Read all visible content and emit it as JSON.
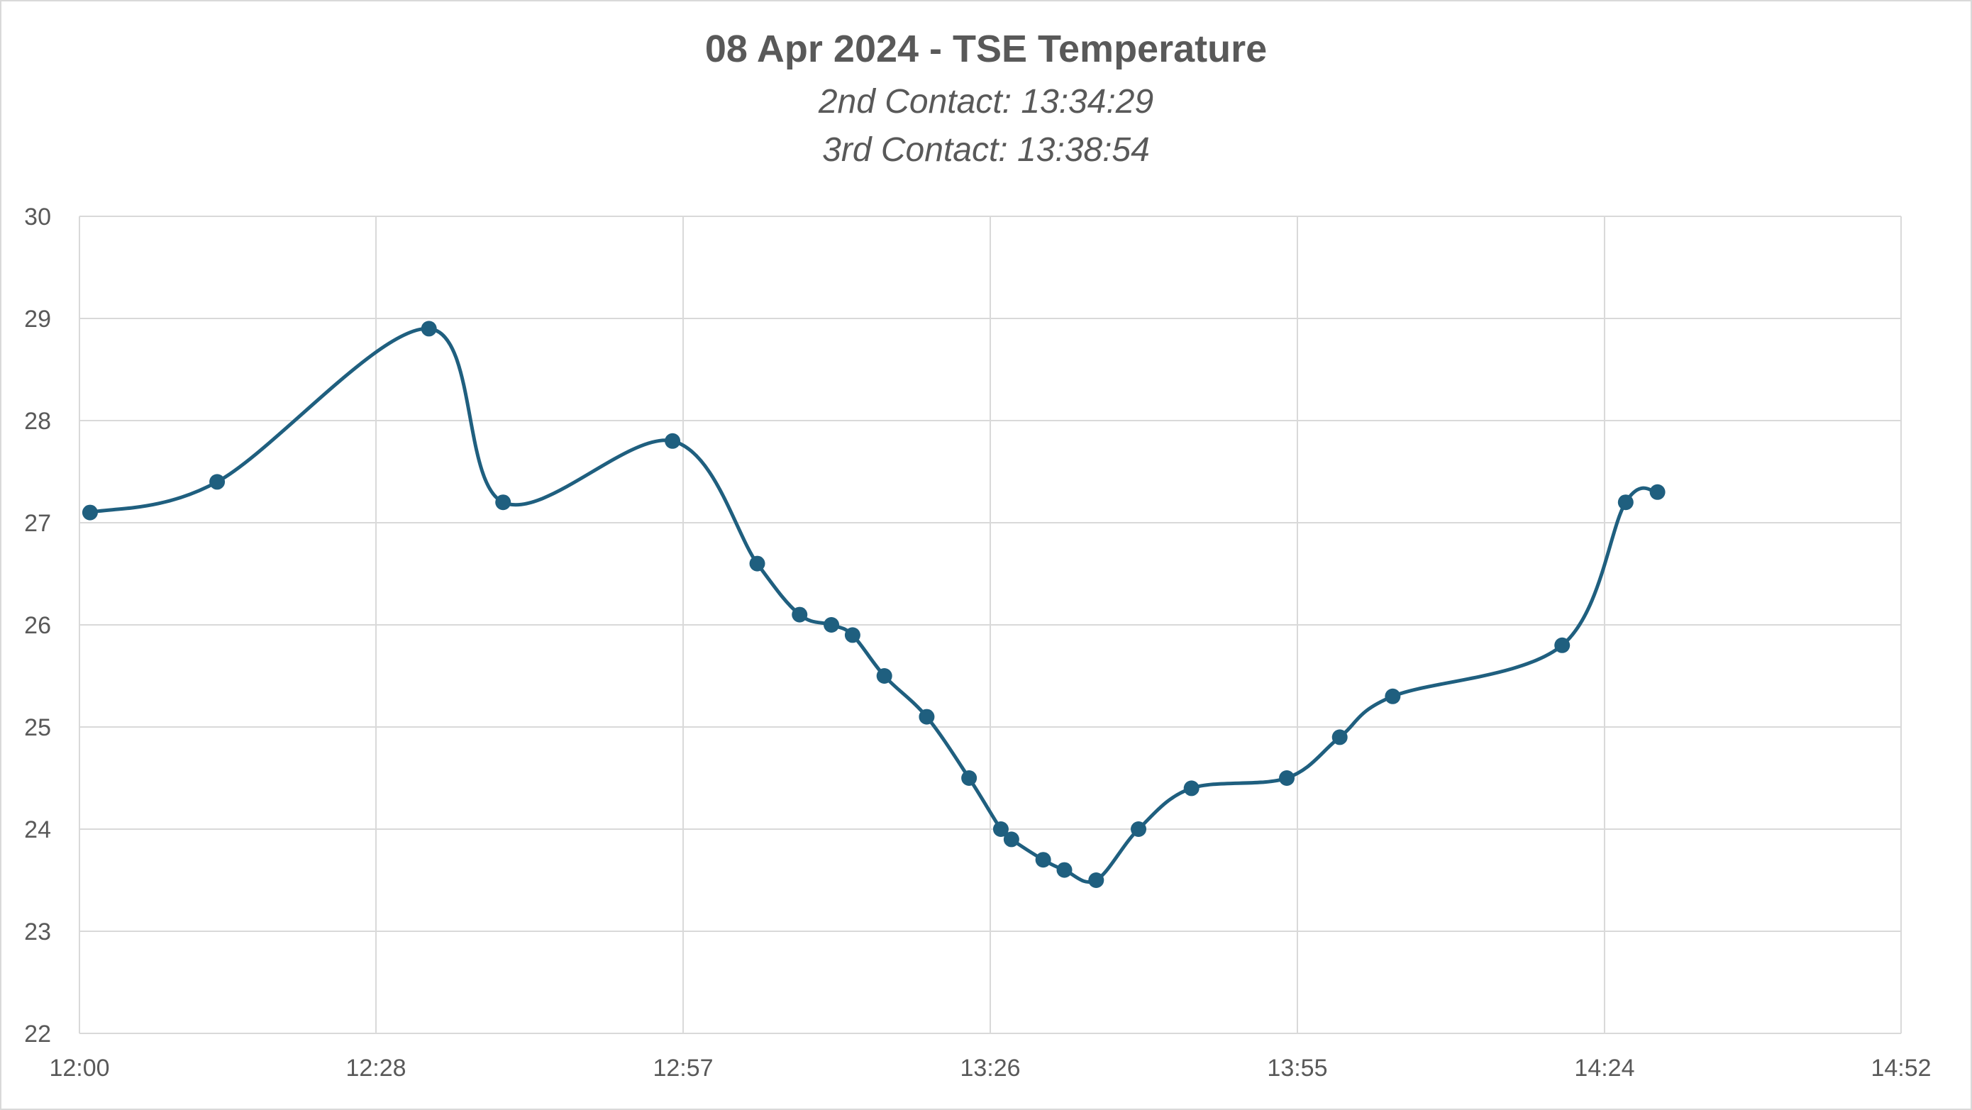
{
  "chart_data": {
    "type": "line",
    "title": "08 Apr 2024 - TSE Temperature",
    "subtitle": [
      "2nd Contact: 13:34:29",
      "3rd Contact: 13:38:54"
    ],
    "xlabel": "",
    "ylabel": "",
    "x_ticks": [
      "12:00",
      "12:28",
      "12:57",
      "13:26",
      "13:55",
      "14:24",
      "14:52"
    ],
    "y_ticks": [
      22,
      23,
      24,
      25,
      26,
      27,
      28,
      29,
      30
    ],
    "xlim": [
      "12:00",
      "14:52"
    ],
    "ylim": [
      22,
      30
    ],
    "grid": true,
    "smooth": true,
    "color": "#1f5f7f",
    "series": [
      {
        "x": [
          "12:01",
          "12:13",
          "12:33",
          "12:40",
          "12:56",
          "13:04",
          "13:08",
          "13:11",
          "13:13",
          "13:16",
          "13:20",
          "13:24",
          "13:27",
          "13:28",
          "13:31",
          "13:33",
          "13:36",
          "13:40",
          "13:45",
          "13:54",
          "13:59",
          "14:04",
          "14:20",
          "14:26",
          "14:29"
        ],
        "values": [
          27.1,
          27.4,
          28.9,
          27.2,
          27.8,
          26.6,
          26.1,
          26.0,
          25.9,
          25.5,
          25.1,
          24.5,
          24.0,
          23.9,
          23.7,
          23.6,
          23.5,
          24.0,
          24.4,
          24.5,
          24.9,
          25.3,
          25.8,
          27.2,
          27.3
        ]
      }
    ]
  }
}
